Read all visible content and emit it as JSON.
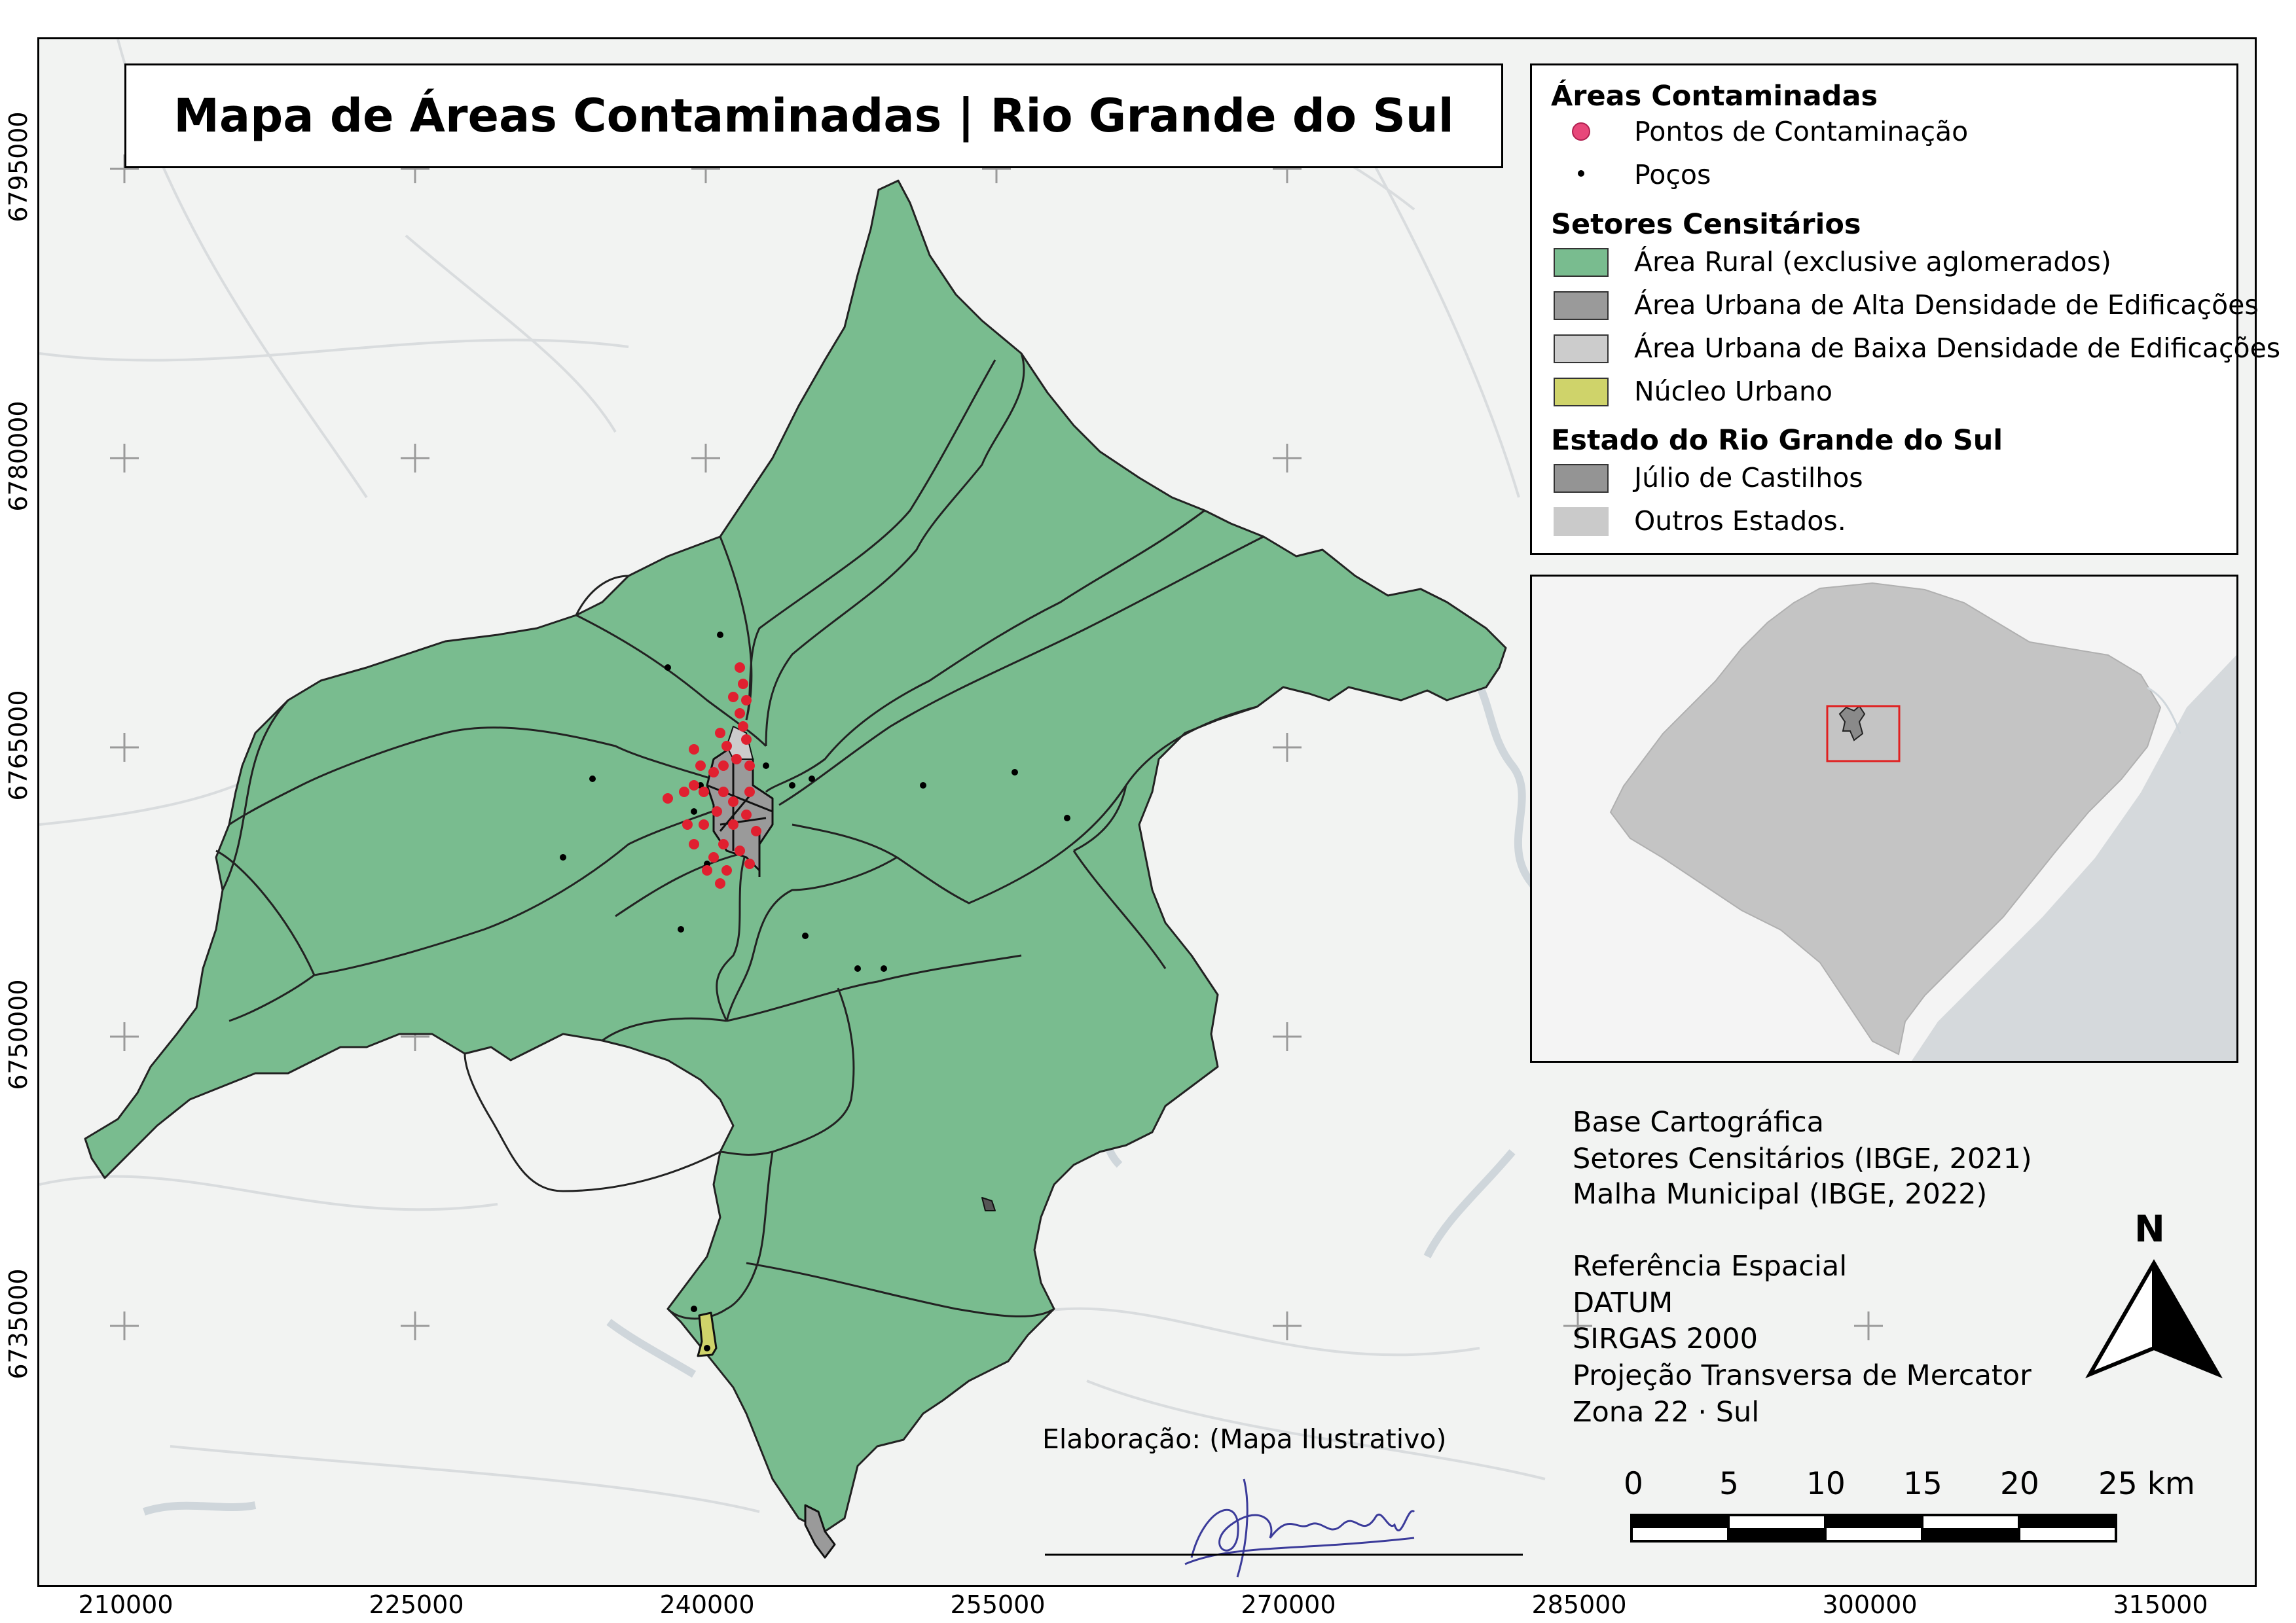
{
  "title": "Mapa de Áreas Contaminadas | Rio Grande do Sul",
  "legend": {
    "groups": [
      {
        "heading": "Áreas Contaminadas",
        "items": [
          {
            "label": "Pontos de Contaminação",
            "symbol": "point",
            "color": "#e8477a"
          },
          {
            "label": "Poços",
            "symbol": "dot",
            "color": "#000000"
          }
        ]
      },
      {
        "heading": "Setores Censitários",
        "items": [
          {
            "label": "Área Rural (exclusive aglomerados)",
            "symbol": "fill",
            "color": "#79bc8f"
          },
          {
            "label": "Área Urbana de Alta Densidade de Edificações",
            "symbol": "fill",
            "color": "#9a9a9a"
          },
          {
            "label": "Área Urbana de Baixa Densidade de Edificações",
            "symbol": "fill",
            "color": "#cccccc"
          },
          {
            "label": "Núcleo Urbano",
            "symbol": "fill",
            "color": "#cfd36a"
          }
        ]
      },
      {
        "heading": "Estado do Rio Grande do Sul",
        "items": [
          {
            "label": "Júlio de Castilhos",
            "symbol": "fill",
            "color": "#949494"
          },
          {
            "label": "Outros Estados.",
            "symbol": "fill-noborder",
            "color": "#cacaca"
          }
        ]
      }
    ]
  },
  "grid": {
    "x_labels": [
      "210000",
      "225000",
      "240000",
      "255000",
      "270000",
      "285000",
      "300000",
      "315000"
    ],
    "y_labels": [
      "6795000",
      "6780000",
      "6765000",
      "6750000",
      "6735000"
    ]
  },
  "info": {
    "base_title": "Base Cartográfica",
    "base_line1": "Setores Censitários (IBGE, 2021)",
    "base_line2": "Malha Municipal (IBGE, 2022)",
    "ref_title": "Referência Espacial",
    "ref_line1": "DATUM",
    "ref_line2": "SIRGAS 2000",
    "ref_line3": "Projeção Transversa de Mercator",
    "ref_line4": "Zona 22 · Sul"
  },
  "north_label": "N",
  "scalebar": {
    "labels": [
      "0",
      "5",
      "10",
      "15",
      "20",
      "25 km"
    ]
  },
  "credits": {
    "label": "Elaboração: (Mapa Ilustrativo)"
  },
  "colors": {
    "rural": "#79bc8f",
    "urban_high": "#9a9a9a",
    "urban_low": "#cccccc",
    "nucleus": "#cfd36a",
    "contamination": "#e02030",
    "wells": "#000000",
    "inset_state": "#c4c4c4",
    "inset_ocean": "#d5d9dc",
    "inset_highlight": "#e02020",
    "basemap_water": "#cfd6db"
  }
}
